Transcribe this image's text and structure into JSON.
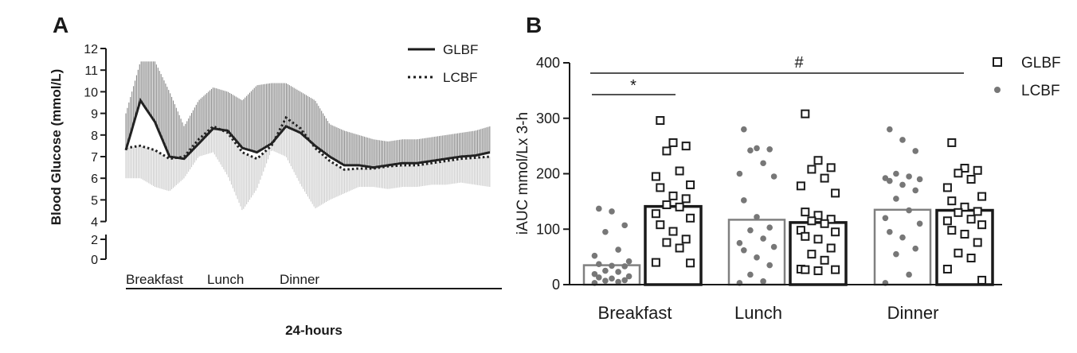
{
  "chart_data": [
    {
      "panel": "A",
      "type": "line",
      "xlabel": "24-hours",
      "ylabel": "Blood Glucose (mmol/L)",
      "ylim": [
        0,
        12
      ],
      "y_ticks": [
        "0",
        "2",
        "4",
        "5",
        "6",
        "7",
        "8",
        "9",
        "10",
        "11",
        "12"
      ],
      "axis_break": "between 2 and 4",
      "meal_labels": [
        "Breakfast",
        "Lunch",
        "Dinner"
      ],
      "legend_position": "top-right",
      "series": [
        {
          "name": "GLBF",
          "style": "solid",
          "color": "#222222",
          "x": [
            0,
            4,
            8,
            12,
            16,
            20,
            24,
            28,
            32,
            36,
            40,
            44,
            48,
            52,
            56,
            60,
            64,
            68,
            72,
            76,
            80,
            84,
            88,
            92,
            96,
            100
          ],
          "values": [
            7.3,
            9.6,
            8.6,
            7.0,
            6.9,
            7.6,
            8.3,
            8.2,
            7.4,
            7.2,
            7.6,
            8.4,
            8.1,
            7.5,
            7.0,
            6.6,
            6.6,
            6.5,
            6.6,
            6.7,
            6.7,
            6.8,
            6.9,
            7.0,
            7.05,
            7.2
          ],
          "band_upper": [
            9.0,
            11.4,
            11.4,
            10.0,
            8.4,
            9.6,
            10.2,
            10.0,
            9.6,
            10.3,
            10.4,
            10.4,
            10.0,
            9.6,
            8.5,
            8.2,
            8.0,
            7.8,
            7.7,
            7.8,
            7.8,
            7.9,
            8.0,
            8.1,
            8.2,
            8.4
          ],
          "band_color": "#888888"
        },
        {
          "name": "LCBF",
          "style": "dotted",
          "color": "#222222",
          "x": [
            0,
            4,
            8,
            12,
            16,
            20,
            24,
            28,
            32,
            36,
            40,
            44,
            48,
            52,
            56,
            60,
            64,
            68,
            72,
            76,
            80,
            84,
            88,
            92,
            96,
            100
          ],
          "values": [
            7.4,
            7.5,
            7.3,
            6.9,
            7.0,
            7.8,
            8.4,
            8.1,
            7.2,
            6.9,
            7.5,
            8.8,
            8.3,
            7.4,
            6.8,
            6.4,
            6.45,
            6.45,
            6.55,
            6.6,
            6.6,
            6.7,
            6.8,
            6.9,
            6.95,
            7.0
          ],
          "band_lower": [
            6.0,
            6.0,
            5.6,
            5.4,
            6.0,
            7.0,
            7.2,
            6.1,
            4.5,
            5.5,
            7.3,
            7.0,
            5.7,
            4.6,
            5.0,
            5.3,
            5.6,
            5.6,
            5.5,
            5.6,
            5.6,
            5.7,
            5.7,
            5.8,
            5.7,
            5.6
          ],
          "band_color": "#cccccc"
        }
      ]
    },
    {
      "panel": "B",
      "type": "bar",
      "ylabel": "iAUC mmol/Lx 3-h",
      "ylim": [
        0,
        400
      ],
      "y_ticks": [
        "0",
        "100",
        "200",
        "300",
        "400"
      ],
      "categories": [
        "Breakfast",
        "Lunch",
        "Dinner"
      ],
      "legend_position": "top-right",
      "series": [
        {
          "name": "LCBF",
          "marker": "filled-circle",
          "bar_color": "#808080",
          "point_color": "#777777",
          "values": [
            35,
            117,
            135
          ],
          "points": [
            [
              137,
              132,
              107,
              95,
              63,
              52,
              42,
              37,
              34,
              33,
              25,
              23,
              19,
              15,
              13,
              11,
              8,
              7,
              5,
              3
            ],
            [
              280,
              246,
              244,
              242,
              219,
              200,
              195,
              152,
              122,
              103,
              98,
              83,
              75,
              68,
              62,
              49,
              35,
              18,
              6,
              3
            ],
            [
              280,
              261,
              241,
              200,
              195,
              192,
              190,
              187,
              180,
              170,
              155,
              134,
              120,
              110,
              95,
              85,
              65,
              55,
              18,
              3
            ]
          ]
        },
        {
          "name": "GLBF",
          "marker": "open-square",
          "bar_color": "#1a1a1a",
          "point_color": "#1a1a1a",
          "values": [
            141,
            112,
            134
          ],
          "points": [
            [
              296,
              256,
              250,
              241,
              205,
              195,
              180,
              175,
              160,
              155,
              144,
              140,
              128,
              120,
              108,
              96,
              82,
              76,
              66,
              40,
              39
            ],
            [
              308,
              224,
              211,
              208,
              192,
              178,
              165,
              131,
              125,
              118,
              115,
              110,
              98,
              95,
              87,
              82,
              66,
              55,
              44,
              28,
              27,
              27,
              25
            ],
            [
              256,
              210,
              206,
              201,
              190,
              175,
              159,
              151,
              140,
              132,
              130,
              118,
              115,
              108,
              98,
              91,
              76,
              57,
              48,
              28,
              8
            ]
          ]
        }
      ],
      "significance": [
        {
          "label": "*",
          "span": "Breakfast"
        },
        {
          "label": "#",
          "span": "Breakfast to Dinner"
        }
      ]
    }
  ]
}
